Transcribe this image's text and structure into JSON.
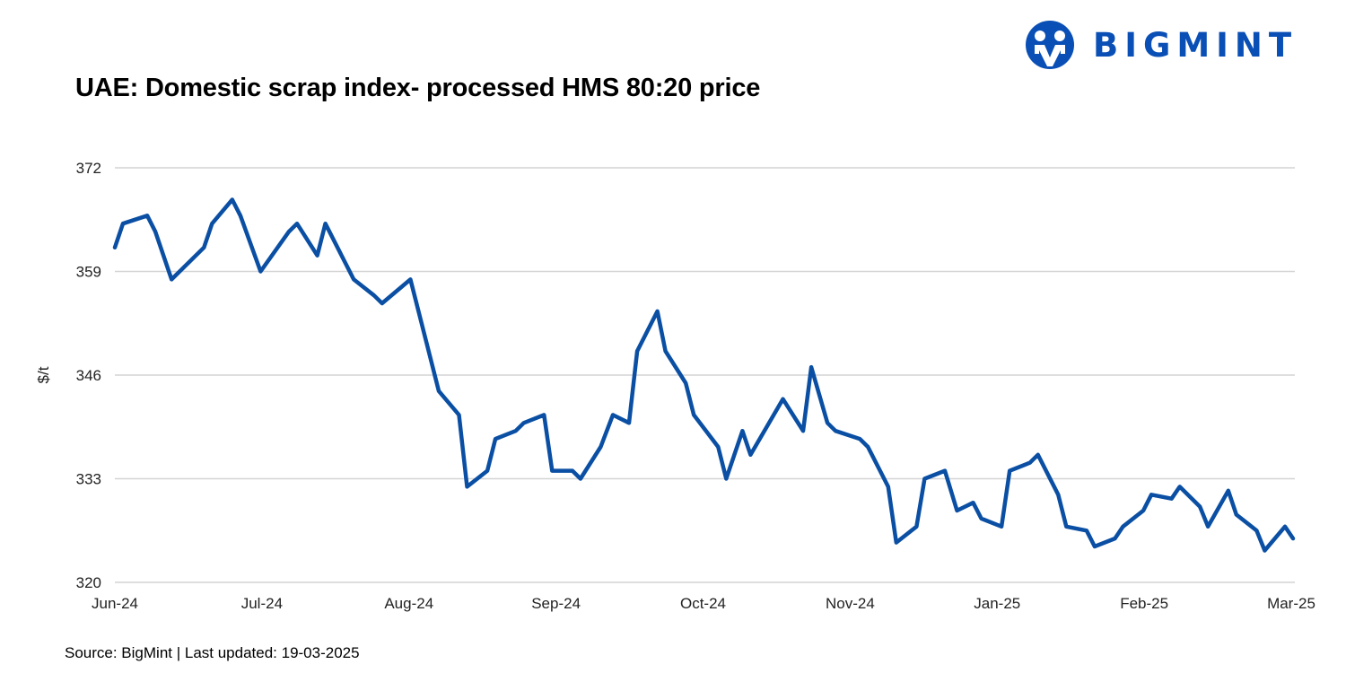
{
  "title": "UAE: Domestic scrap index- processed HMS 80:20 price",
  "source": "Source: BigMint | Last updated: 19-03-2025",
  "logo": {
    "text": "BIGMINT",
    "color": "#0a4fb5"
  },
  "chart_data": {
    "type": "line",
    "title": "UAE: Domestic scrap index- processed HMS 80:20 price",
    "xlabel": "",
    "ylabel": "$/t",
    "ylim": [
      320,
      372
    ],
    "yticks": [
      320,
      333,
      346,
      359,
      372
    ],
    "xlim": [
      "2024-06-01",
      "2025-03-19"
    ],
    "xtick_labels": [
      "Jun-24",
      "Jul-24",
      "Aug-24",
      "Sep-24",
      "Oct-24",
      "Nov-24",
      "Jan-25",
      "Feb-25",
      "Mar-25"
    ],
    "grid": "horizontal",
    "legend": "none",
    "line_color": "#0a4fa3",
    "series": [
      {
        "x": [
          "2024-06-01",
          "2024-06-03",
          "2024-06-09",
          "2024-06-11",
          "2024-06-15",
          "2024-06-23",
          "2024-06-25",
          "2024-06-30",
          "2024-07-02",
          "2024-07-07",
          "2024-07-14",
          "2024-07-16",
          "2024-07-21",
          "2024-07-23",
          "2024-07-30",
          "2024-08-04",
          "2024-08-06",
          "2024-08-13",
          "2024-08-20",
          "2024-08-25",
          "2024-08-27",
          "2024-09-01",
          "2024-09-03",
          "2024-09-08",
          "2024-09-10",
          "2024-09-15",
          "2024-09-17",
          "2024-09-22",
          "2024-09-24",
          "2024-09-29",
          "2024-10-02",
          "2024-10-06",
          "2024-10-08",
          "2024-10-13",
          "2024-10-15",
          "2024-10-20",
          "2024-10-22",
          "2024-10-28",
          "2024-10-30",
          "2024-11-03",
          "2024-11-05",
          "2024-11-13",
          "2024-11-18",
          "2024-11-20",
          "2024-11-24",
          "2024-11-26",
          "2024-12-02",
          "2024-12-04",
          "2024-12-09",
          "2024-12-11",
          "2024-12-16",
          "2024-12-18",
          "2024-12-23",
          "2024-12-26",
          "2024-12-30",
          "2025-01-01",
          "2025-01-06",
          "2025-01-08",
          "2025-01-13",
          "2025-01-15",
          "2025-01-20",
          "2025-01-22",
          "2025-01-27",
          "2025-01-29",
          "2025-02-03",
          "2025-02-05",
          "2025-02-10",
          "2025-02-12",
          "2025-02-17",
          "2025-02-19",
          "2025-02-24",
          "2025-02-26",
          "2025-03-03",
          "2025-03-05",
          "2025-03-10",
          "2025-03-12",
          "2025-03-17",
          "2025-03-19"
        ],
        "y": [
          362,
          365,
          366,
          364,
          358,
          362,
          365,
          368,
          366,
          359,
          364,
          365,
          361,
          365,
          358,
          356,
          355,
          358,
          344,
          341,
          332,
          334,
          338,
          339,
          340,
          341,
          334,
          334,
          333,
          337,
          341,
          340,
          349,
          354,
          349,
          345,
          341,
          337,
          333,
          339,
          336,
          343,
          339,
          347,
          340,
          339,
          338,
          337,
          332,
          325,
          327,
          333,
          334,
          329,
          330,
          328,
          327,
          334,
          335,
          336,
          331,
          327,
          326.5,
          324.5,
          325.5,
          327,
          329,
          331,
          330.5,
          332,
          329.5,
          327,
          331.5,
          328.5,
          326.5,
          324,
          327,
          325.5
        ]
      }
    ]
  }
}
